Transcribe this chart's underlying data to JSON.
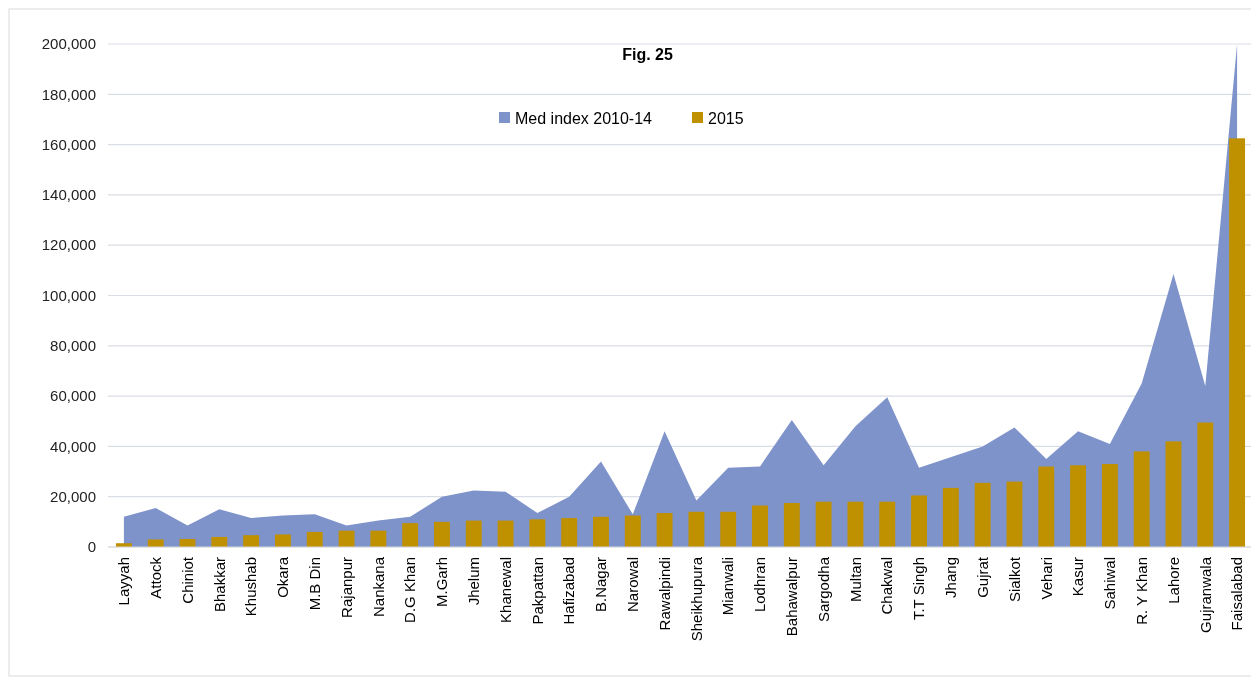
{
  "chart_data": {
    "type": "bar",
    "title": "Fig. 25",
    "categories": [
      "Layyah",
      "Attock",
      "Chiniot",
      "Bhakkar",
      "Khushab",
      "Okara",
      "M.B Din",
      "Rajanpur",
      "Nankana",
      "D.G Khan",
      "M.Garh",
      "Jhelum",
      "Khanewal",
      "Pakpattan",
      "Hafizabad",
      "B.Nagar",
      "Narowal",
      "Rawalpindi",
      "Sheikhupura",
      "Mianwali",
      "Lodhran",
      "Bahawalpur",
      "Sargodha",
      "Multan",
      "Chakwal",
      "T.T Singh",
      "Jhang",
      "Gujrat",
      "Sialkot",
      "Vehari",
      "Kasur",
      "Sahiwal",
      "R. Y Khan",
      "Lahore",
      "Gujranwala",
      "Faisalabad"
    ],
    "series": [
      {
        "name": "Med index 2010-14",
        "type": "area",
        "color": "#7f93cb",
        "values": [
          12000,
          15500,
          8500,
          15000,
          11500,
          12500,
          13000,
          8500,
          10500,
          12000,
          20000,
          22500,
          22000,
          13500,
          20000,
          34000,
          13000,
          46000,
          18500,
          31500,
          32000,
          50500,
          32500,
          48000,
          59500,
          31500,
          null,
          40000,
          47500,
          35000,
          46000,
          41000,
          65000,
          108500,
          64000,
          200000
        ]
      },
      {
        "name": "2015",
        "color": "#bf9000",
        "values": [
          1500,
          3000,
          3200,
          4000,
          4700,
          5000,
          6000,
          6500,
          6500,
          9500,
          10000,
          10500,
          10500,
          11000,
          11500,
          12000,
          12500,
          13500,
          14000,
          14000,
          16500,
          17500,
          18000,
          18000,
          18000,
          20500,
          23500,
          25500,
          26000,
          32000,
          32500,
          33000,
          38000,
          42000,
          49500,
          162500
        ]
      }
    ],
    "ylim": [
      0,
      200000
    ],
    "yticks": [
      {
        "value": 0,
        "label": "0"
      },
      {
        "value": 20000,
        "label": "20,000"
      },
      {
        "value": 40000,
        "label": "40,000"
      },
      {
        "value": 60000,
        "label": "60,000"
      },
      {
        "value": 80000,
        "label": "80,000"
      },
      {
        "value": 100000,
        "label": "100,000"
      },
      {
        "value": 120000,
        "label": "120,000"
      },
      {
        "value": 140000,
        "label": "140,000"
      },
      {
        "value": 160000,
        "label": "160,000"
      },
      {
        "value": 180000,
        "label": "180,000"
      },
      {
        "value": 200000,
        "label": "200,000"
      }
    ],
    "grid": "y",
    "legend": "top"
  }
}
